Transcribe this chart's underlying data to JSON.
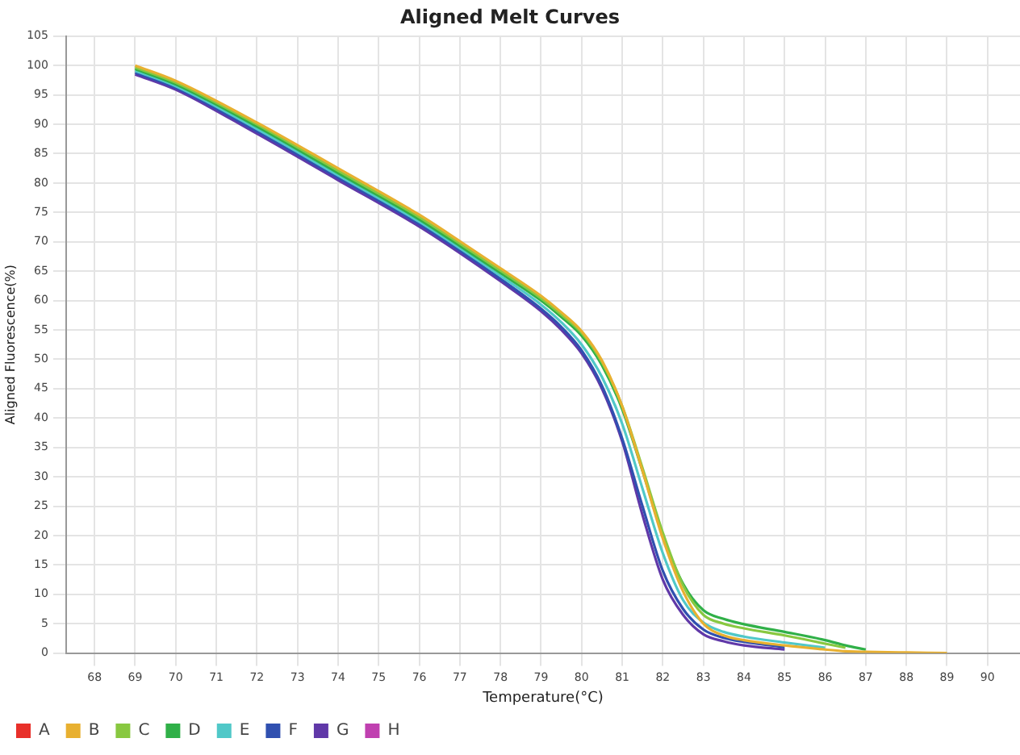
{
  "chart_data": {
    "type": "line",
    "title": "Aligned Melt Curves",
    "xlabel": "Temperature(°C)",
    "ylabel": "Aligned Fluorescence(%)",
    "x": [
      69,
      70,
      72,
      74,
      76,
      77,
      78,
      79,
      79.5,
      80,
      80.5,
      81,
      81.5,
      82,
      82.5,
      83,
      83.5,
      84,
      85,
      86,
      86.5,
      87,
      88,
      89
    ],
    "series": [
      {
        "name": "A",
        "color": "#e8302a",
        "values": [
          null,
          null,
          null,
          null,
          null,
          null,
          null,
          null,
          null,
          null,
          null,
          null,
          null,
          null,
          null,
          null,
          null,
          null,
          null,
          null,
          null,
          null,
          null,
          null
        ]
      },
      {
        "name": "B",
        "color": "#e8b030",
        "values": [
          100,
          97.4,
          90.3,
          82.5,
          74.6,
          70.1,
          65.5,
          60.8,
          58,
          54.8,
          49.8,
          42,
          31,
          19.5,
          10.5,
          5,
          3,
          2.2,
          1.3,
          0.6,
          0.3,
          0.2,
          0.1,
          0
        ]
      },
      {
        "name": "C",
        "color": "#88c840",
        "values": [
          99.7,
          97.1,
          90,
          82.1,
          74.2,
          69.7,
          65.1,
          60.4,
          57.6,
          54.5,
          49.5,
          42,
          31.5,
          20.5,
          11.5,
          6.5,
          5,
          4.2,
          3,
          1.6,
          0.9,
          null,
          null,
          null
        ]
      },
      {
        "name": "D",
        "color": "#30b048",
        "values": [
          99.4,
          96.8,
          89.6,
          81.7,
          73.8,
          69.3,
          64.7,
          60,
          57.2,
          54,
          49,
          41.5,
          31,
          20,
          11.8,
          7.3,
          5.8,
          4.9,
          3.6,
          2.2,
          1.3,
          0.6,
          null,
          null
        ]
      },
      {
        "name": "E",
        "color": "#50c8c8",
        "values": [
          99.1,
          96.5,
          89.2,
          81.3,
          73.4,
          68.9,
          64.2,
          59.3,
          56.3,
          52.5,
          47,
          39,
          28,
          17,
          9,
          5.2,
          3.6,
          2.8,
          1.8,
          0.9,
          null,
          null,
          null,
          null
        ]
      },
      {
        "name": "F",
        "color": "#3050b0",
        "values": [
          98.8,
          96.2,
          88.8,
          80.9,
          73,
          68.5,
          63.7,
          58.6,
          55.5,
          51.5,
          45.5,
          36.5,
          25,
          14,
          7.5,
          4,
          2.6,
          1.9,
          1,
          null,
          null,
          null,
          null,
          null
        ]
      },
      {
        "name": "G",
        "color": "#6038a8",
        "values": [
          98.5,
          95.9,
          88.4,
          80.5,
          72.6,
          68.1,
          63.3,
          58.2,
          55,
          51,
          45,
          36,
          23.5,
          12.5,
          6.5,
          3.2,
          2,
          1.3,
          0.6,
          null,
          null,
          null,
          null,
          null
        ]
      },
      {
        "name": "H",
        "color": "#c040b0",
        "values": [
          null,
          null,
          null,
          null,
          null,
          null,
          null,
          null,
          null,
          null,
          null,
          null,
          null,
          null,
          null,
          null,
          null,
          null,
          null,
          null,
          null,
          null,
          null,
          null
        ]
      }
    ],
    "xlim": [
      67.3,
      90.8
    ],
    "xticks": [
      68,
      69,
      70,
      71,
      72,
      73,
      74,
      75,
      76,
      77,
      78,
      79,
      80,
      81,
      82,
      83,
      84,
      85,
      86,
      87,
      88,
      89,
      90
    ],
    "ylim": [
      0,
      105
    ],
    "yticks": [
      0,
      5,
      10,
      15,
      20,
      25,
      30,
      35,
      40,
      45,
      50,
      55,
      60,
      65,
      70,
      75,
      80,
      85,
      90,
      95,
      100,
      105
    ],
    "grid": true,
    "legend": "bottom left",
    "marker": "none",
    "line_style": "solid"
  }
}
